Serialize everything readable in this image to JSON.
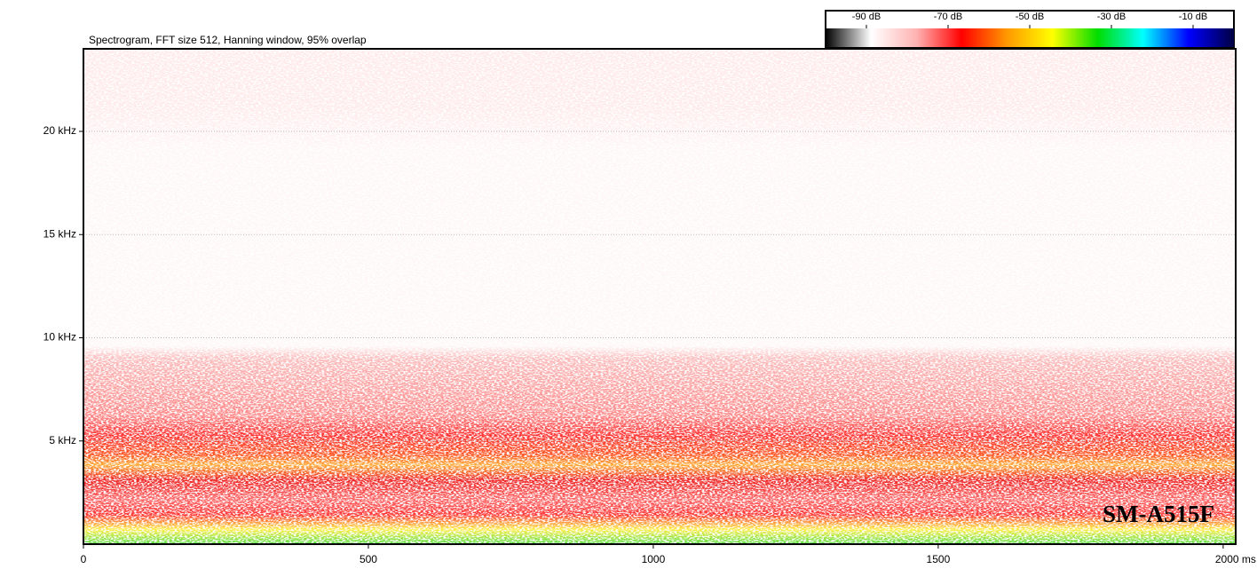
{
  "chart_data": {
    "type": "spectrogram",
    "title": "Spectrogram, FFT size 512, Hanning window, 95% overlap",
    "xlim": [
      0,
      2022
    ],
    "xticks": [
      0,
      500,
      1000,
      1500,
      {
        "value": 2000,
        "label": "2000 ms"
      }
    ],
    "ylim": [
      0,
      24
    ],
    "yticks": [
      {
        "value": 5,
        "label": "5 kHz"
      },
      {
        "value": 10,
        "label": "10 kHz"
      },
      {
        "value": 15,
        "label": "15 kHz"
      },
      {
        "value": 20,
        "label": "20 kHz"
      }
    ],
    "grid": true,
    "colorbar": {
      "lim": [
        -100,
        0
      ],
      "ticks": [
        {
          "value": -90,
          "label": "-90 dB"
        },
        {
          "value": -70,
          "label": "-70 dB"
        },
        {
          "value": -50,
          "label": "-50 dB"
        },
        {
          "value": -30,
          "label": "-30 dB"
        },
        {
          "value": -10,
          "label": "-10 dB"
        }
      ],
      "colormap": [
        "#000000",
        "#ffffff",
        "#ffb3b3",
        "#ff0000",
        "#ff9900",
        "#ffff00",
        "#00dd00",
        "#00ffff",
        "#0000ff",
        "#000044"
      ]
    },
    "annotation": "SM-A515F"
  }
}
